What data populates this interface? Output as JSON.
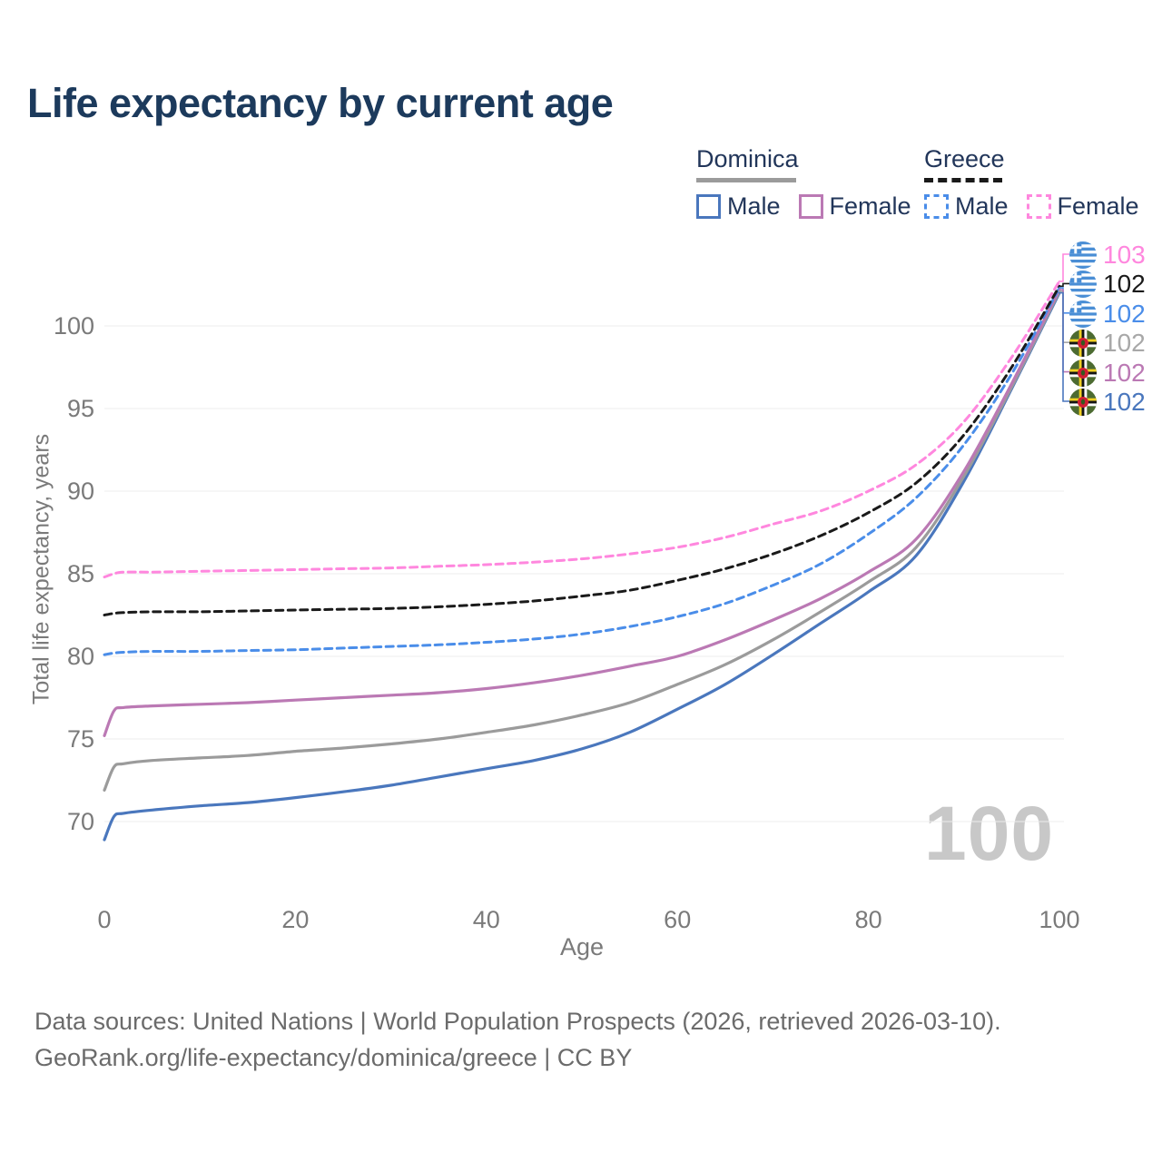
{
  "title": "Life expectancy by current age",
  "watermark": "100",
  "axes": {
    "y_title": "Total life expectancy, years",
    "x_title": "Age"
  },
  "legend": {
    "groups": [
      {
        "country": "Dominica",
        "line_style": "solid",
        "line_color": "#9b9b9b",
        "items": [
          {
            "label": "Male",
            "color": "#4a77bd",
            "dashed": false
          },
          {
            "label": "Female",
            "color": "#bb79b4",
            "dashed": false
          }
        ]
      },
      {
        "country": "Greece",
        "line_style": "dashed",
        "line_color": "#1a1a1a",
        "items": [
          {
            "label": "Male",
            "color": "#4a8de9",
            "dashed": true
          },
          {
            "label": "Female",
            "color": "#ff87de",
            "dashed": true
          }
        ]
      }
    ]
  },
  "chart_data": {
    "type": "line",
    "title": "Life expectancy by current age",
    "xlabel": "Age",
    "ylabel": "Total life expectancy, years",
    "x_ticks": [
      0,
      20,
      40,
      60,
      80,
      100
    ],
    "y_ticks": [
      70,
      75,
      80,
      85,
      90,
      95,
      100
    ],
    "xlim": [
      0,
      100
    ],
    "ylim": [
      68,
      103.5
    ],
    "grid": "horizontal",
    "legend_position": "top-right",
    "x": [
      0,
      1,
      2,
      5,
      10,
      15,
      20,
      25,
      30,
      35,
      40,
      45,
      50,
      55,
      60,
      65,
      70,
      75,
      80,
      85,
      90,
      95,
      100
    ],
    "series": [
      {
        "key": "dominica_male",
        "name": "Dominica Male",
        "color": "#4a77bd",
        "dashed": false,
        "values": [
          68.9,
          70.3,
          70.5,
          70.7,
          70.95,
          71.15,
          71.45,
          71.8,
          72.2,
          72.7,
          73.2,
          73.7,
          74.4,
          75.4,
          76.8,
          78.3,
          80.1,
          82.0,
          83.9,
          86.1,
          90.6,
          96.2,
          102.0
        ]
      },
      {
        "key": "dominica_total",
        "name": "Dominica",
        "color": "#9b9b9b",
        "dashed": false,
        "values": [
          71.9,
          73.3,
          73.5,
          73.7,
          73.85,
          74.0,
          74.25,
          74.45,
          74.7,
          75.0,
          75.4,
          75.85,
          76.45,
          77.2,
          78.3,
          79.5,
          81.0,
          82.7,
          84.5,
          86.6,
          90.9,
          96.3,
          102.1
        ]
      },
      {
        "key": "dominica_female",
        "name": "Dominica Female",
        "color": "#bb79b4",
        "dashed": false,
        "values": [
          75.2,
          76.7,
          76.9,
          77.0,
          77.1,
          77.2,
          77.35,
          77.5,
          77.65,
          77.8,
          78.05,
          78.4,
          78.85,
          79.4,
          80.0,
          81.0,
          82.2,
          83.5,
          85.1,
          87.1,
          91.2,
          96.5,
          102.2
        ]
      },
      {
        "key": "greece_male",
        "name": "Greece Male",
        "color": "#4a8de9",
        "dashed": true,
        "values": [
          80.1,
          80.2,
          80.25,
          80.3,
          80.3,
          80.35,
          80.4,
          80.5,
          80.6,
          80.7,
          80.85,
          81.05,
          81.35,
          81.8,
          82.4,
          83.2,
          84.3,
          85.6,
          87.4,
          89.6,
          92.8,
          97.1,
          102.3
        ]
      },
      {
        "key": "greece_total",
        "name": "Greece",
        "color": "#1a1a1a",
        "dashed": true,
        "values": [
          82.5,
          82.6,
          82.65,
          82.7,
          82.7,
          82.75,
          82.8,
          82.85,
          82.9,
          83.0,
          83.15,
          83.35,
          83.65,
          84.0,
          84.6,
          85.3,
          86.2,
          87.3,
          88.7,
          90.5,
          93.4,
          97.5,
          102.4
        ]
      },
      {
        "key": "greece_female",
        "name": "Greece Female",
        "color": "#ff87de",
        "dashed": true,
        "values": [
          84.8,
          85.0,
          85.1,
          85.1,
          85.15,
          85.2,
          85.25,
          85.3,
          85.35,
          85.45,
          85.55,
          85.7,
          85.9,
          86.2,
          86.6,
          87.2,
          88.0,
          88.8,
          90.0,
          91.6,
          94.2,
          98.1,
          102.7
        ]
      }
    ],
    "end_labels": [
      {
        "flag": "greece",
        "value": "103",
        "color": "#ff87de",
        "series": "greece_female"
      },
      {
        "flag": "greece",
        "value": "102",
        "color": "#1a1a1a",
        "series": "greece_total"
      },
      {
        "flag": "greece",
        "value": "102",
        "color": "#4a8de9",
        "series": "greece_male"
      },
      {
        "flag": "dominica",
        "value": "102",
        "color": "#a8a8a8",
        "series": "dominica_total"
      },
      {
        "flag": "dominica",
        "value": "102",
        "color": "#bb79b4",
        "series": "dominica_female"
      },
      {
        "flag": "dominica",
        "value": "102",
        "color": "#4a77bd",
        "series": "dominica_male"
      }
    ]
  },
  "footer": {
    "line1": "Data sources: United Nations | World Population Prospects (2026, retrieved 2026-03-10).",
    "line2": "GeoRank.org/life-expectancy/dominica/greece | CC BY"
  }
}
